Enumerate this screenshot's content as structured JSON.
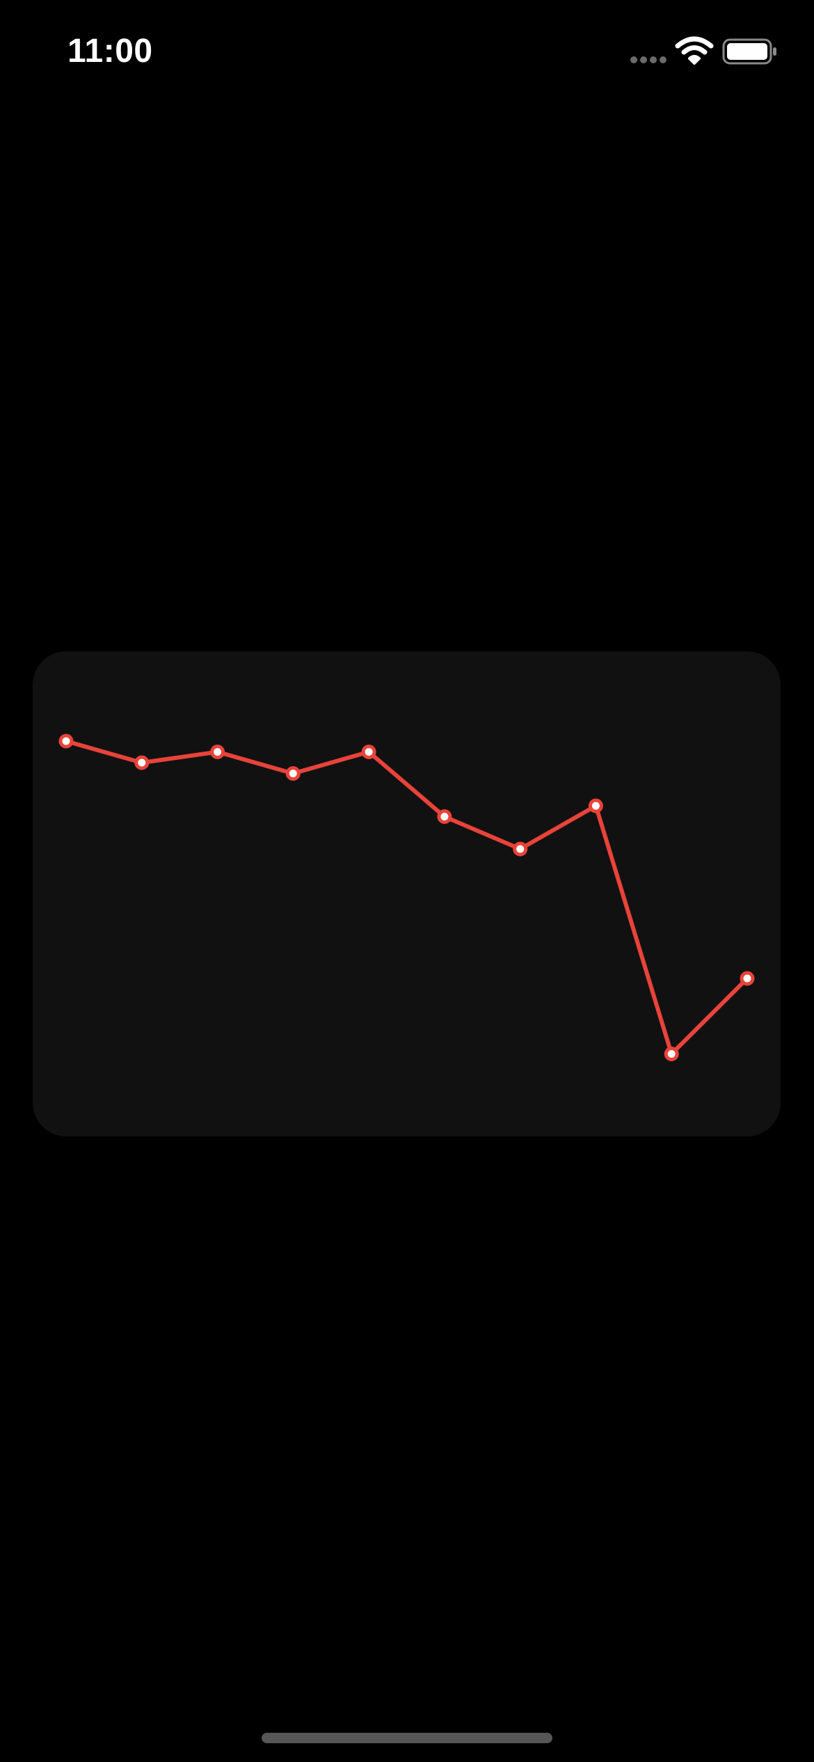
{
  "status_bar": {
    "time": "11:00",
    "icons": [
      "cellular-signal-icon",
      "wifi-icon",
      "battery-icon"
    ]
  },
  "chart_data": {
    "type": "line",
    "title": "",
    "xlabel": "",
    "ylabel": "",
    "x": [
      1,
      2,
      3,
      4,
      5,
      6,
      7,
      8,
      9,
      10
    ],
    "series": [
      {
        "values": [
          92,
          88,
          90,
          86,
          90,
          78,
          72,
          80,
          34,
          48
        ],
        "color": "#e8433a"
      }
    ],
    "ylim": [
      24,
      104
    ],
    "grid": false,
    "legend": "none",
    "marker": "circle",
    "marker_fill": "#ffffff"
  },
  "colors": {
    "background": "#000000",
    "card": "#111111",
    "accent": "#e8433a"
  }
}
